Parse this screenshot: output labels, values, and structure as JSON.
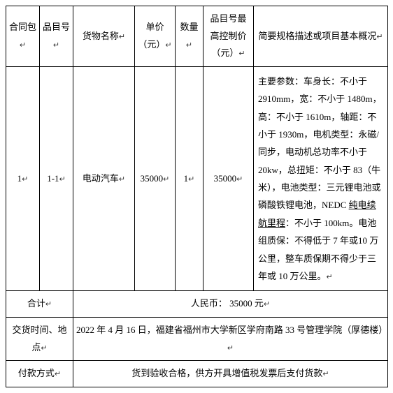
{
  "headers": {
    "col1": "合同包",
    "col2": "品目号",
    "col3": "货物名称",
    "col4": "单价（元）",
    "col5": "数量",
    "col6": "品目号最高控制价（元）",
    "col7": "简要规格描述或项目基本概况"
  },
  "row": {
    "contract_pkg": "1",
    "item_no": "1-1",
    "goods_name": "电动汽车",
    "unit_price": "35000",
    "quantity": "1",
    "max_price": "35000",
    "spec_prefix": "主要参数：车身长：不小于2910mm，宽：不小于 1480m，高：不小于 1610m，轴距：不小于 1930m，电机类型：永磁/同步，电动机总功率不小于20kw，总扭矩：不小于 83（牛米），电池类型：三元锂电池或磷酸铁锂电池，NEDC ",
    "spec_underlined": "纯电续航里程",
    "spec_suffix": "：不小于 100km。电池组质保：不得低于 7 年或10 万公里，整车质保期不得少于三年或 10 万公里。"
  },
  "total": {
    "label": "合计",
    "value": "人民币：   35000    元"
  },
  "delivery": {
    "label": "交货时间、地点",
    "value": "2022 年 4 月 16 日，福建省福州市大学新区学府南路 33 号管理学院（厚德楼）"
  },
  "payment": {
    "label": "付款方式",
    "value": "货到验收合格，供方开具增值税发票后支付货款"
  },
  "marker": "↵"
}
